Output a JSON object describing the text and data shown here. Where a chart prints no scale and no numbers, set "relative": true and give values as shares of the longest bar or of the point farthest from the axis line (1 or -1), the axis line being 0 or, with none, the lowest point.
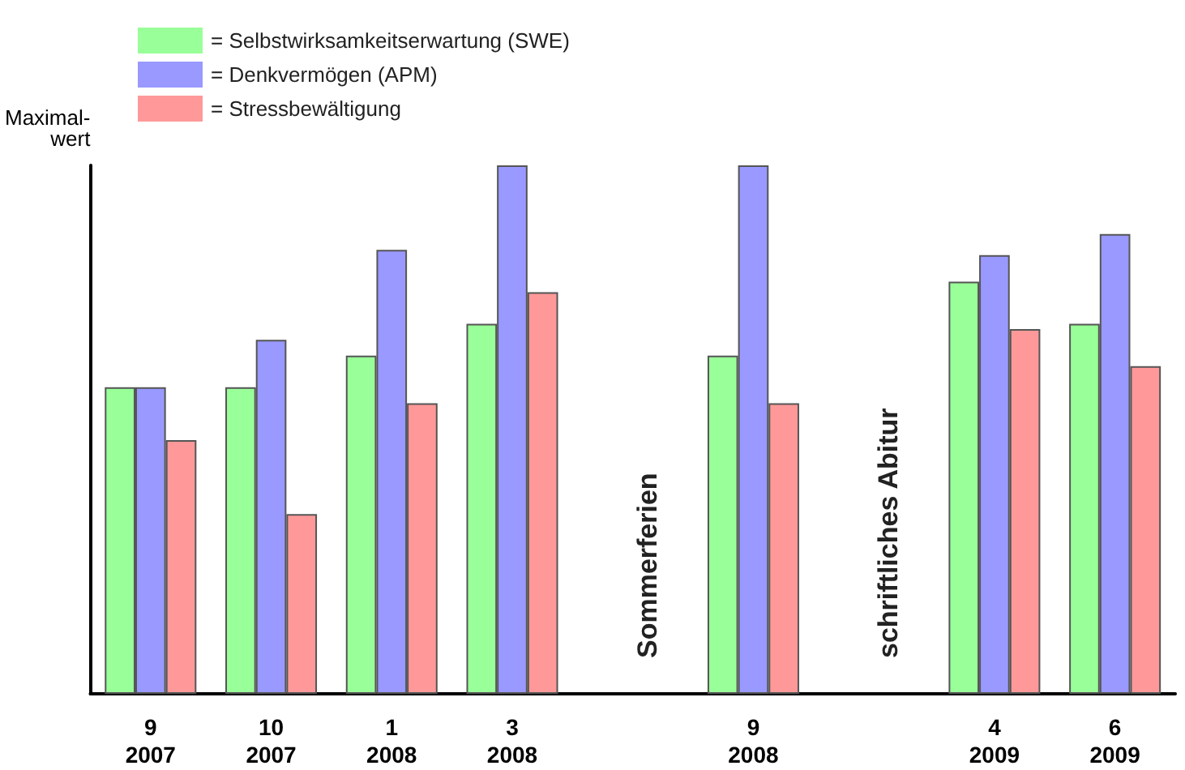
{
  "chart_data": {
    "type": "bar",
    "relative": true,
    "ylabel": "Maximal-\nwert",
    "legend": "top left",
    "categories": [
      "9\n2007",
      "10\n2007",
      "1\n2008",
      "3\n2008",
      null,
      "9\n2008",
      null,
      "4\n2009",
      "6\n2009"
    ],
    "series": [
      {
        "name": "= Selbstwirksamkeitserwartung (SWE)",
        "color": "#99ff99",
        "values": [
          0.58,
          0.58,
          0.64,
          0.7,
          null,
          0.64,
          null,
          0.78,
          0.7
        ]
      },
      {
        "name": "= Denkvermögen (APM)",
        "color": "#9999ff",
        "values": [
          0.58,
          0.67,
          0.84,
          1,
          null,
          1,
          null,
          0.83,
          0.87
        ]
      },
      {
        "name": "= Stressbewältigung",
        "color": "#ff9999",
        "values": [
          0.48,
          0.34,
          0.55,
          0.76,
          null,
          0.55,
          null,
          0.69,
          0.62
        ]
      }
    ],
    "annotations": [
      "Sommerferien",
      "schriftliches Abitur"
    ]
  }
}
